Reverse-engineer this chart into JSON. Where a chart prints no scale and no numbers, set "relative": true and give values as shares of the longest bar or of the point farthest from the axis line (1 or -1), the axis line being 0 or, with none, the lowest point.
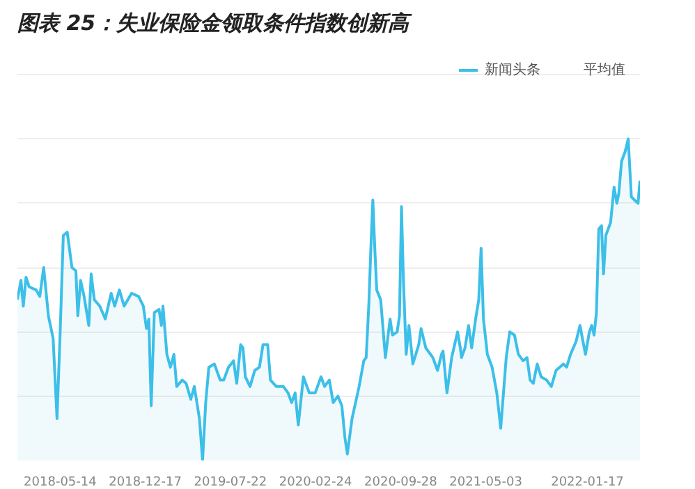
{
  "chart_data": {
    "type": "area",
    "title": "图表 25：失业保险金领取条件指数创新高",
    "relative": true,
    "grid": "y",
    "legend": "top right",
    "annotations": [
      "平均值"
    ],
    "x": [
      "2018-01-25",
      "2018-02-03",
      "2018-02-09",
      "2018-02-16",
      "2018-02-24",
      "2018-03-14",
      "2018-03-23",
      "2018-04-02",
      "2018-04-14",
      "2018-04-26",
      "2018-05-06",
      "2018-05-14",
      "2018-05-22",
      "2018-06-01",
      "2018-06-13",
      "2018-06-23",
      "2018-06-28",
      "2018-07-05",
      "2018-07-14",
      "2018-07-26",
      "2018-08-01",
      "2018-08-09",
      "2018-08-23",
      "2018-09-06",
      "2018-09-21",
      "2018-09-30",
      "2018-10-12",
      "2018-10-24",
      "2018-11-12",
      "2018-11-30",
      "2018-12-12",
      "2018-12-20",
      "2018-12-26",
      "2019-01-01",
      "2019-01-09",
      "2019-01-21",
      "2019-01-27",
      "2019-01-31",
      "2019-02-10",
      "2019-02-19",
      "2019-02-28",
      "2019-03-07",
      "2019-03-21",
      "2019-03-31",
      "2019-04-12",
      "2019-04-21",
      "2019-05-04",
      "2019-05-12",
      "2019-05-20",
      "2019-05-28",
      "2019-06-11",
      "2019-06-26",
      "2019-07-05",
      "2019-07-17",
      "2019-07-30",
      "2019-08-07",
      "2019-08-17",
      "2019-08-23",
      "2019-08-29",
      "2019-09-10",
      "2019-09-22",
      "2019-10-04",
      "2019-10-13",
      "2019-10-25",
      "2019-11-01",
      "2019-11-16",
      "2019-12-04",
      "2019-12-16",
      "2019-12-25",
      "2020-01-03",
      "2020-01-11",
      "2020-01-24",
      "2020-02-08",
      "2020-02-23",
      "2020-03-09",
      "2020-03-18",
      "2020-03-30",
      "2020-04-09",
      "2020-04-21",
      "2020-05-01",
      "2020-05-09",
      "2020-05-15",
      "2020-05-27",
      "2020-06-14",
      "2020-06-26",
      "2020-07-02",
      "2020-07-09",
      "2020-07-14",
      "2020-07-19",
      "2020-07-24",
      "2020-07-29",
      "2020-08-08",
      "2020-08-20",
      "2020-09-01",
      "2020-09-07",
      "2020-09-19",
      "2020-09-25",
      "2020-09-30",
      "2020-10-05",
      "2020-10-12",
      "2020-10-19",
      "2020-10-29",
      "2020-11-13",
      "2020-11-19",
      "2020-12-01",
      "2020-12-19",
      "2020-12-31",
      "2021-01-10",
      "2021-01-14",
      "2021-01-24",
      "2021-02-05",
      "2021-02-20",
      "2021-02-27",
      "2021-03-02",
      "2021-03-11",
      "2021-03-20",
      "2021-03-28",
      "2021-04-07",
      "2021-04-15",
      "2021-04-21",
      "2021-04-27",
      "2021-05-07",
      "2021-05-19",
      "2021-05-31",
      "2021-06-10",
      "2021-06-24",
      "2021-07-03",
      "2021-07-15",
      "2021-07-25",
      "2021-08-06",
      "2021-08-16",
      "2021-08-24",
      "2021-09-01",
      "2021-09-11",
      "2021-09-21",
      "2021-10-05",
      "2021-10-17",
      "2021-10-29",
      "2021-11-17",
      "2021-11-25",
      "2021-12-05",
      "2021-12-19",
      "2021-12-29",
      "2022-01-12",
      "2022-01-22",
      "2022-01-28",
      "2022-02-03",
      "2022-02-09",
      "2022-02-15",
      "2022-02-22",
      "2022-02-27",
      "2022-03-05",
      "2022-03-17",
      "2022-03-26",
      "2022-04-02",
      "2022-04-07",
      "2022-04-14",
      "2022-04-23",
      "2022-05-01",
      "2022-05-09",
      "2022-05-17",
      "2022-05-26",
      "2022-05-31"
    ],
    "series": [
      {
        "name": "新闻头条",
        "color": "#3cbfe8",
        "values": [
          0.5,
          0.56,
          0.48,
          0.57,
          0.54,
          0.53,
          0.51,
          0.6,
          0.45,
          0.38,
          0.13,
          0.4,
          0.7,
          0.71,
          0.6,
          0.59,
          0.45,
          0.56,
          0.51,
          0.42,
          0.58,
          0.5,
          0.48,
          0.44,
          0.52,
          0.48,
          0.53,
          0.48,
          0.52,
          0.51,
          0.48,
          0.41,
          0.44,
          0.17,
          0.46,
          0.47,
          0.42,
          0.48,
          0.33,
          0.29,
          0.33,
          0.23,
          0.25,
          0.24,
          0.19,
          0.23,
          0.13,
          0.0,
          0.18,
          0.29,
          0.3,
          0.25,
          0.25,
          0.29,
          0.31,
          0.24,
          0.36,
          0.35,
          0.26,
          0.23,
          0.28,
          0.29,
          0.36,
          0.36,
          0.25,
          0.23,
          0.23,
          0.21,
          0.18,
          0.21,
          0.11,
          0.26,
          0.21,
          0.21,
          0.26,
          0.23,
          0.25,
          0.18,
          0.2,
          0.17,
          0.07,
          0.02,
          0.13,
          0.23,
          0.31,
          0.32,
          0.49,
          0.66,
          0.81,
          0.66,
          0.53,
          0.5,
          0.32,
          0.44,
          0.39,
          0.4,
          0.45,
          0.79,
          0.56,
          0.33,
          0.42,
          0.3,
          0.36,
          0.41,
          0.35,
          0.32,
          0.28,
          0.33,
          0.34,
          0.21,
          0.32,
          0.4,
          0.35,
          0.32,
          0.35,
          0.42,
          0.35,
          0.44,
          0.5,
          0.66,
          0.44,
          0.33,
          0.29,
          0.21,
          0.1,
          0.32,
          0.4,
          0.39,
          0.33,
          0.31,
          0.32,
          0.25,
          0.24,
          0.3,
          0.26,
          0.25,
          0.23,
          0.28,
          0.3,
          0.29,
          0.33,
          0.37,
          0.42,
          0.33,
          0.4,
          0.42,
          0.39,
          0.46,
          0.72,
          0.73,
          0.58,
          0.7,
          0.74,
          0.85,
          0.8,
          0.83,
          0.93,
          0.96,
          1.0,
          0.82,
          0.81,
          0.8,
          0.87
        ]
      }
    ],
    "xlim": [
      "2018-01-25",
      "2022-05-31"
    ],
    "xticks": [
      "2018-05-14",
      "2018-12-17",
      "2019-07-22",
      "2020-02-24",
      "2020-09-28",
      "2021-05-03",
      "2022-01-17"
    ]
  }
}
